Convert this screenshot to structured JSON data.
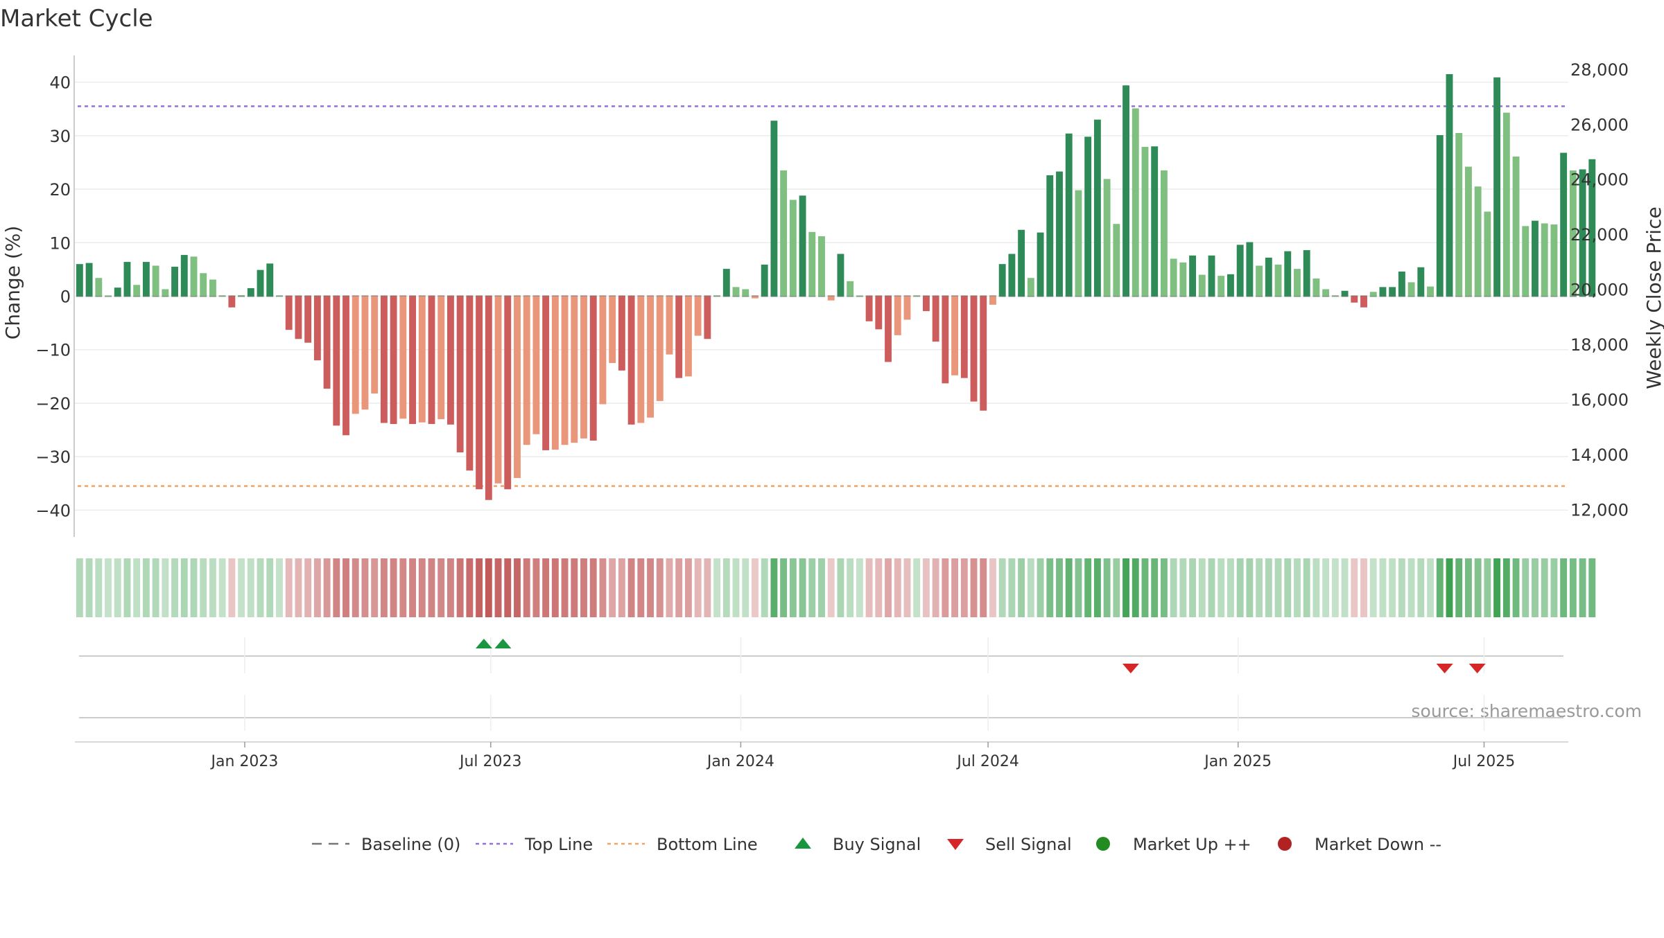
{
  "chart_data": {
    "type": "bar",
    "title": "Market Cycle",
    "ylabel": "Change (%)",
    "y2label": "Weekly Close Price",
    "source": "source: sharemaestro.com",
    "ylim": [
      -45,
      45
    ],
    "y2lim": [
      11000,
      28500
    ],
    "yticks": [
      40,
      30,
      20,
      10,
      0,
      -10,
      -20,
      -30,
      -40
    ],
    "ytick_labels": [
      "40",
      "30",
      "20",
      "10",
      "0",
      "−10",
      "−20",
      "−30",
      "−40"
    ],
    "y2ticks": [
      28000,
      26000,
      24000,
      22000,
      20000,
      18000,
      16000,
      14000,
      12000
    ],
    "y2tick_labels": [
      "28,000",
      "26,000",
      "24,000",
      "22,000",
      "20,000",
      "18,000",
      "16,000",
      "14,000",
      "12,000"
    ],
    "xaxis": {
      "start": "2022-08-29",
      "end": "2025-09-01",
      "ticks": [
        {
          "date": "2023-01-01",
          "label": "Jan 2023"
        },
        {
          "date": "2023-07-01",
          "label": "Jul 2023"
        },
        {
          "date": "2024-01-01",
          "label": "Jan 2024"
        },
        {
          "date": "2024-07-01",
          "label": "Jul 2024"
        },
        {
          "date": "2025-01-01",
          "label": "Jan 2025"
        },
        {
          "date": "2025-07-01",
          "label": "Jul 2025"
        }
      ]
    },
    "reference_lines": {
      "top_line": 35.5,
      "bottom_line": -35.5,
      "baseline": 0
    },
    "grid": true,
    "legend_position": "bottom-center",
    "weeks": {
      "start_date": "2022-08-29",
      "interval_days": 7,
      "values": [
        6.0,
        6.2,
        3.4,
        0.1,
        1.6,
        6.4,
        2.1,
        6.4,
        5.7,
        1.3,
        5.5,
        7.7,
        7.4,
        4.3,
        3.1,
        0.0,
        -2.1,
        0.2,
        1.5,
        4.9,
        6.1,
        0.0,
        -6.3,
        -8.0,
        -8.7,
        -12.0,
        -17.3,
        -24.2,
        -26.0,
        -22.0,
        -21.2,
        -18.2,
        -23.7,
        -23.9,
        -22.9,
        -23.9,
        -23.6,
        -23.9,
        -23.0,
        -24.0,
        -29.2,
        -32.6,
        -36.1,
        -38.1,
        -35.0,
        -36.1,
        -34.0,
        -27.8,
        -25.8,
        -28.8,
        -28.7,
        -27.8,
        -27.4,
        -26.6,
        -27.0,
        -20.2,
        -12.5,
        -13.9,
        -24.0,
        -23.7,
        -22.7,
        -19.6,
        -10.9,
        -15.3,
        -15.0,
        -7.4,
        -8.0,
        0.0,
        5.1,
        1.7,
        1.3,
        -0.4,
        5.9,
        32.8,
        23.5,
        18.0,
        18.8,
        12.0,
        11.2,
        -0.8,
        7.9,
        2.8,
        0.1,
        -4.7,
        -6.2,
        -12.3,
        -7.3,
        -4.4,
        0.0,
        -2.8,
        -8.5,
        -16.3,
        -14.8,
        -15.3,
        -19.7,
        -21.4,
        -1.6,
        6.0,
        7.9,
        12.4,
        3.4,
        11.9,
        22.6,
        23.3,
        30.4,
        19.8,
        29.8,
        33.0,
        21.9,
        13.5,
        39.4,
        35.1,
        27.9,
        28.0,
        23.5,
        7.0,
        6.3,
        7.6,
        4.0,
        7.6,
        3.8,
        4.1,
        9.6,
        10.1,
        5.7,
        7.2,
        5.9,
        8.4,
        5.1,
        8.6,
        3.3,
        1.3,
        0.0,
        1.0,
        -1.2,
        -2.1,
        0.8,
        1.7,
        1.7,
        4.6,
        2.6,
        5.4,
        1.8,
        30.1,
        41.5,
        30.5,
        24.2,
        20.5,
        15.8,
        40.9,
        34.3,
        26.1,
        13.1,
        14.1,
        13.6,
        13.4,
        26.8,
        23.5,
        23.7,
        25.6
      ]
    },
    "signals": {
      "buy": [
        "2023-06-26",
        "2023-07-10"
      ],
      "sell": [
        "2024-10-14",
        "2025-06-02",
        "2025-06-26"
      ]
    },
    "colors": {
      "up_strong": "#2e8b57",
      "up_weak": "#7fbf7f",
      "down_strong": "#cd5c5c",
      "down_weak": "#e9967a",
      "top_line": "#9370db",
      "bottom_line": "#f4a460",
      "baseline": "#777777",
      "buy": "#1a9641",
      "sell": "#d62728",
      "market_up": "#228b22",
      "market_down": "#b22222"
    },
    "legend": [
      {
        "label": "Baseline (0)",
        "type": "dash",
        "color": "#777777"
      },
      {
        "label": "Top Line",
        "type": "dot",
        "color": "#9370db"
      },
      {
        "label": "Bottom Line",
        "type": "dot",
        "color": "#f4a460"
      },
      {
        "label": "Buy Signal",
        "type": "triangle-up",
        "color": "#1a9641"
      },
      {
        "label": "Sell Signal",
        "type": "triangle-down",
        "color": "#d62728"
      },
      {
        "label": "Market Up ++",
        "type": "circle",
        "color": "#228b22"
      },
      {
        "label": "Market Down --",
        "type": "circle",
        "color": "#b22222"
      }
    ]
  }
}
